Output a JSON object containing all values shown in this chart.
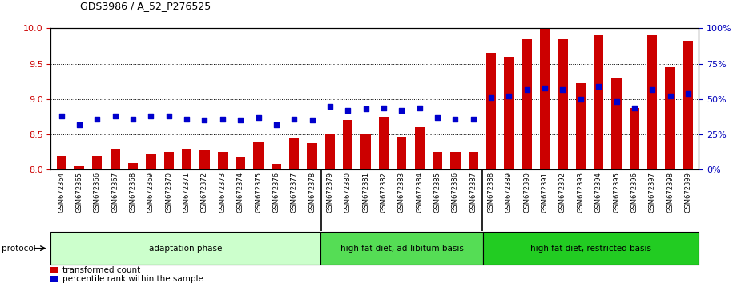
{
  "title": "GDS3986 / A_52_P276525",
  "samples": [
    "GSM672364",
    "GSM672365",
    "GSM672366",
    "GSM672367",
    "GSM672368",
    "GSM672369",
    "GSM672370",
    "GSM672371",
    "GSM672372",
    "GSM672373",
    "GSM672374",
    "GSM672375",
    "GSM672376",
    "GSM672377",
    "GSM672378",
    "GSM672379",
    "GSM672380",
    "GSM672381",
    "GSM672382",
    "GSM672383",
    "GSM672384",
    "GSM672385",
    "GSM672386",
    "GSM672387",
    "GSM672388",
    "GSM672389",
    "GSM672390",
    "GSM672391",
    "GSM672392",
    "GSM672393",
    "GSM672394",
    "GSM672395",
    "GSM672396",
    "GSM672397",
    "GSM672398",
    "GSM672399"
  ],
  "bar_values": [
    8.2,
    8.05,
    8.2,
    8.3,
    8.1,
    8.22,
    8.25,
    8.3,
    8.28,
    8.25,
    8.18,
    8.4,
    8.08,
    8.45,
    8.38,
    8.5,
    8.7,
    8.5,
    8.75,
    8.47,
    8.6,
    8.25,
    8.25,
    8.25,
    9.65,
    9.6,
    9.85,
    10.0,
    9.85,
    9.22,
    9.9,
    9.3,
    8.88,
    9.9,
    9.45,
    9.82
  ],
  "percentile_values": [
    38,
    32,
    36,
    38,
    36,
    38,
    38,
    36,
    35,
    36,
    35,
    37,
    32,
    36,
    35,
    45,
    42,
    43,
    44,
    42,
    44,
    37,
    36,
    36,
    51,
    52,
    57,
    58,
    57,
    50,
    59,
    48,
    44,
    57,
    52,
    54
  ],
  "ylim_left": [
    8.0,
    10.0
  ],
  "ylim_right": [
    0,
    100
  ],
  "yticks_left": [
    8.0,
    8.5,
    9.0,
    9.5,
    10.0
  ],
  "yticks_right": [
    0,
    25,
    50,
    75,
    100
  ],
  "bar_color": "#cc0000",
  "dot_color": "#0000cc",
  "plot_bg": "#ffffff",
  "xtick_bg": "#cccccc",
  "groups": [
    {
      "label": "adaptation phase",
      "start": 0,
      "end": 15,
      "color": "#ccffcc"
    },
    {
      "label": "high fat diet, ad-libitum basis",
      "start": 15,
      "end": 24,
      "color": "#55dd55"
    },
    {
      "label": "high fat diet, restricted basis",
      "start": 24,
      "end": 36,
      "color": "#22cc22"
    }
  ],
  "protocol_label": "protocol",
  "legend_bar_label": "transformed count",
  "legend_dot_label": "percentile rank within the sample",
  "title_fontsize": 9,
  "tick_fontsize": 7,
  "axis_label_color_left": "#cc0000",
  "axis_label_color_right": "#0000bb",
  "grid_yticks": [
    8.5,
    9.0,
    9.5
  ]
}
